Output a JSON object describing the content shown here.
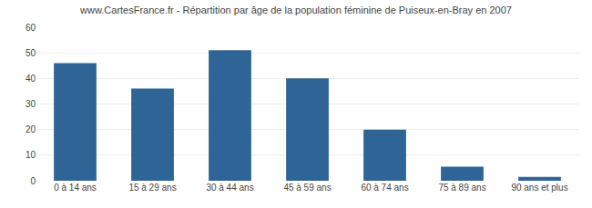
{
  "chart_data": {
    "type": "bar",
    "title": "www.CartesFrance.fr - Répartition par âge de la population féminine de Puiseux-en-Bray en 2007",
    "categories": [
      "0 à 14 ans",
      "15 à 29 ans",
      "30 à 44 ans",
      "45 à 59 ans",
      "60 à 74 ans",
      "75 à 89 ans",
      "90 ans et plus"
    ],
    "values": [
      46,
      36,
      51,
      40,
      20,
      5.5,
      1.5
    ],
    "color": "#2e6496",
    "ylim": [
      0,
      60
    ],
    "yticks": [
      0,
      10,
      20,
      30,
      40,
      50,
      60
    ],
    "grid": true
  }
}
